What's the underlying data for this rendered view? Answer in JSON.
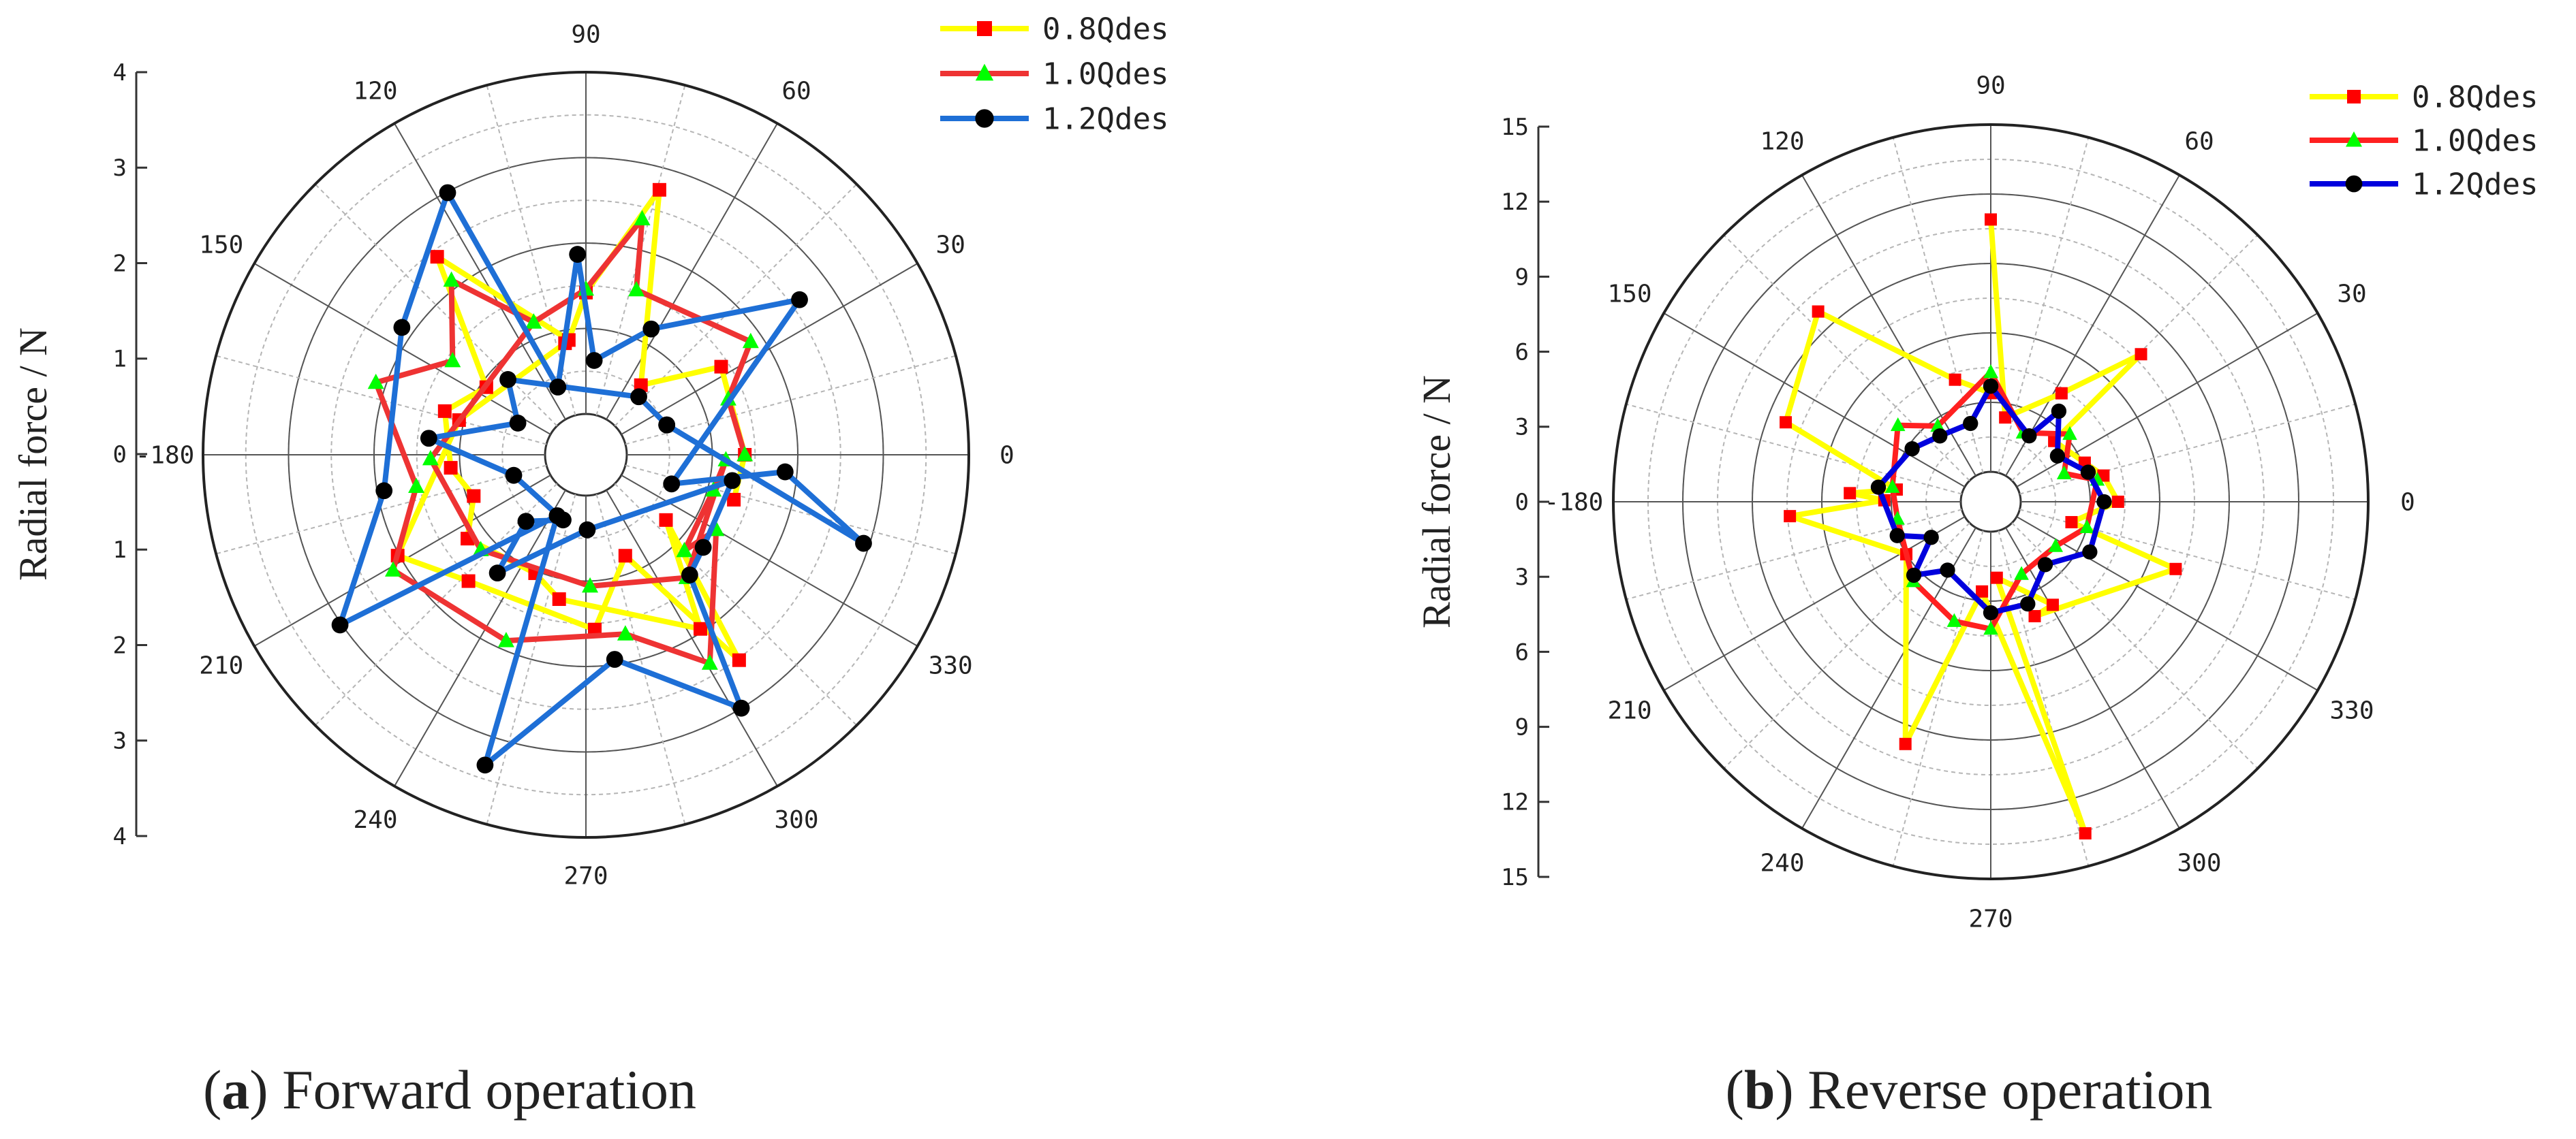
{
  "chart_data": [
    {
      "type": "polar-line",
      "panel_label": "a",
      "caption": "Forward operation",
      "ylabel": "Radial force / N",
      "r_max": 4,
      "r_ticks": [
        1,
        2,
        3,
        4
      ],
      "axis_tick_labels": [
        "4",
        "3",
        "2",
        "1",
        "0",
        "1",
        "2",
        "3",
        "4"
      ],
      "zero_label": "0",
      "angle_labels": [
        {
          "deg": 0,
          "text": "0"
        },
        {
          "deg": 30,
          "text": "30"
        },
        {
          "deg": 60,
          "text": "60"
        },
        {
          "deg": 90,
          "text": "90"
        },
        {
          "deg": 120,
          "text": "120"
        },
        {
          "deg": 150,
          "text": "150"
        },
        {
          "deg": 180,
          "text": "-180"
        },
        {
          "deg": 210,
          "text": "210"
        },
        {
          "deg": 240,
          "text": "240"
        },
        {
          "deg": 270,
          "text": "270"
        },
        {
          "deg": 300,
          "text": "300"
        },
        {
          "deg": 330,
          "text": "330"
        }
      ],
      "series": [
        {
          "name": "0.8Qdes",
          "color": "#ffff00",
          "marker": "square",
          "marker_color": "#ff0000",
          "points": [
            [
              343.1,
              1.33
            ],
            [
              0,
              1.38
            ],
            [
              33.1,
              1.41
            ],
            [
              51.7,
              0.56
            ],
            [
              74.5,
              2.74
            ],
            [
              90,
              1.42
            ],
            [
              98.5,
              0.88
            ],
            [
              126.9,
              2.42
            ],
            [
              145.8,
              0.93
            ],
            [
              162.8,
              1.25
            ],
            [
              185.5,
              1.11
            ],
            [
              200.2,
              0.92
            ],
            [
              215.3,
              1.22
            ],
            [
              246.8,
              1.03
            ],
            [
              259.5,
              1.24
            ],
            [
              303.3,
              1.96
            ],
            [
              320.8,
              0.73
            ],
            [
              306.7,
              2.52
            ],
            [
              291.3,
              0.79
            ],
            [
              272.9,
              1.57
            ],
            [
              227.1,
              1.54
            ],
            [
              208.2,
              2.02
            ],
            [
              164.7,
              1.06
            ],
            [
              100.6,
              0.85
            ]
          ]
        },
        {
          "name": "1.0Qdes",
          "color": "#ee3333",
          "marker": "triangle",
          "marker_color": "#00ff00",
          "points": [
            [
              0,
              1.38
            ],
            [
              21.4,
              1.31
            ],
            [
              34.5,
              1.86
            ],
            [
              73.0,
              1.54
            ],
            [
              76.6,
              2.36
            ],
            [
              90,
              1.46
            ],
            [
              111.5,
              1.19
            ],
            [
              127.6,
              2.1
            ],
            [
              144.8,
              1.43
            ],
            [
              161.0,
              2.12
            ],
            [
              190.6,
              1.54
            ],
            [
              210.9,
              2.15
            ],
            [
              246.8,
              1.89
            ],
            [
              282.4,
              1.67
            ],
            [
              300.7,
              2.36
            ],
            [
              330.1,
              1.28
            ],
            [
              315.7,
              1.13
            ],
            [
              344.5,
              1.07
            ],
            [
              357.9,
              1.16
            ],
            [
              309.3,
              1.38
            ],
            [
              271.8,
              1.06
            ],
            [
              222.1,
              1.18
            ],
            [
              181.5,
              1.34
            ],
            [
              111.5,
              1.19
            ]
          ]
        },
        {
          "name": "1.2Qdes",
          "color": "#1e6fd6",
          "marker": "circle",
          "marker_color": "#000000",
          "points": [
            [
              20.3,
              0.53
            ],
            [
              342.3,
              2.93
            ],
            [
              355.1,
              1.86
            ],
            [
              341.2,
              0.58
            ],
            [
              36.0,
              2.61
            ],
            [
              62.6,
              1.18
            ],
            [
              85.0,
              0.63
            ],
            [
              92.4,
              1.87
            ],
            [
              112.5,
              0.38
            ],
            [
              117.8,
              2.99
            ],
            [
              145.3,
              2.14
            ],
            [
              190.1,
              1.92
            ],
            [
              214.7,
              3.02
            ],
            [
              244.8,
              0.31
            ],
            [
              252.0,
              3.34
            ],
            [
              278.0,
              1.94
            ],
            [
              301.5,
              3.0
            ],
            [
              310.8,
              1.38
            ],
            [
              321.7,
              1.27
            ],
            [
              350.0,
              1.26
            ],
            [
              271.0,
              0.4
            ],
            [
              233.2,
              1.25
            ],
            [
              228.0,
              0.57
            ],
            [
              250.7,
              0.33
            ],
            [
              195.9,
              0.4
            ],
            [
              174.0,
              1.37
            ],
            [
              155.0,
              0.4
            ],
            [
              136.0,
              0.79
            ],
            [
              47.7,
              0.44
            ],
            [
              20.3,
              0.53
            ]
          ]
        }
      ]
    },
    {
      "type": "polar-line",
      "panel_label": "b",
      "caption": "Reverse operation",
      "ylabel": "Radial force / N",
      "r_max": 15,
      "r_ticks": [
        3,
        6,
        9,
        12,
        15
      ],
      "axis_tick_labels": [
        "15",
        "12",
        "9",
        "6",
        "3",
        "0",
        "3",
        "6",
        "9",
        "12",
        "15"
      ],
      "zero_label": "0",
      "angle_labels": [
        {
          "deg": 0,
          "text": "0"
        },
        {
          "deg": 30,
          "text": "30"
        },
        {
          "deg": 60,
          "text": "60"
        },
        {
          "deg": 90,
          "text": "90"
        },
        {
          "deg": 120,
          "text": "120"
        },
        {
          "deg": 150,
          "text": "150"
        },
        {
          "deg": 180,
          "text": "-180"
        },
        {
          "deg": 210,
          "text": "210"
        },
        {
          "deg": 240,
          "text": "240"
        },
        {
          "deg": 270,
          "text": "270"
        },
        {
          "deg": 300,
          "text": "300"
        },
        {
          "deg": 330,
          "text": "330"
        }
      ],
      "series": [
        {
          "name": "0.8Qdes",
          "color": "#ffff00",
          "marker": "square",
          "marker_color": "#ff0000",
          "points": [
            [
              90,
              10.9
            ],
            [
              80.3,
              2.4
            ],
            [
              56.9,
              4.3
            ],
            [
              44.5,
              7.8
            ],
            [
              43.8,
              2.5
            ],
            [
              22.6,
              3.1
            ],
            [
              13.1,
              3.7
            ],
            [
              0,
              4.2
            ],
            [
              345.8,
              2.3
            ],
            [
              340.0,
              7.2
            ],
            [
              291.0,
              4.0
            ],
            [
              301.0,
              3.9
            ],
            [
              274.5,
              2.0
            ],
            [
              285.9,
              13.6
            ],
            [
              264.4,
              2.6
            ],
            [
              250.6,
              9.8
            ],
            [
              211.9,
              3.0
            ],
            [
              184.1,
              7.4
            ],
            [
              179.2,
              3.3
            ],
            [
              176.5,
              4.8
            ],
            [
              172.6,
              2.8
            ],
            [
              158.8,
              8.2
            ],
            [
              132.2,
              9.8
            ],
            [
              106.3,
              4.2
            ],
            [
              90,
              3.4
            ]
          ]
        },
        {
          "name": "1.0Qdes",
          "color": "#ff2020",
          "marker": "triangle",
          "marker_color": "#00ff00",
          "points": [
            [
              90,
              4.3
            ],
            [
              64.9,
              2.0
            ],
            [
              40.6,
              3.2
            ],
            [
              21.1,
              2.1
            ],
            [
              11.6,
              3.4
            ],
            [
              345.1,
              3.0
            ],
            [
              325.6,
              2.1
            ],
            [
              293.0,
              2.1
            ],
            [
              270,
              4.2
            ],
            [
              253.0,
              4.1
            ],
            [
              225.8,
              3.5
            ],
            [
              190.4,
              2.8
            ],
            [
              171.5,
              3.0
            ],
            [
              140.5,
              3.9
            ],
            [
              125.0,
              2.7
            ],
            [
              90,
              4.3
            ]
          ]
        },
        {
          "name": "1.2Qdes",
          "color": "#0000dd",
          "marker": "circle",
          "marker_color": "#000000",
          "points": [
            [
              90,
              3.7
            ],
            [
              104.5,
              2.2
            ],
            [
              127.7,
              2.3
            ],
            [
              146.0,
              2.8
            ],
            [
              172.6,
              3.6
            ],
            [
              199.9,
              3.0
            ],
            [
              210.9,
              1.7
            ],
            [
              223.7,
              3.3
            ],
            [
              237.7,
              2.2
            ],
            [
              270,
              3.5
            ],
            [
              289.9,
              3.4
            ],
            [
              310.9,
              2.3
            ],
            [
              333.1,
              3.5
            ],
            [
              0,
              3.6
            ],
            [
              16.9,
              3.1
            ],
            [
              34.5,
              2.2
            ],
            [
              53.1,
              3.6
            ],
            [
              59.8,
              2.0
            ],
            [
              90,
              3.7
            ]
          ]
        }
      ]
    }
  ]
}
